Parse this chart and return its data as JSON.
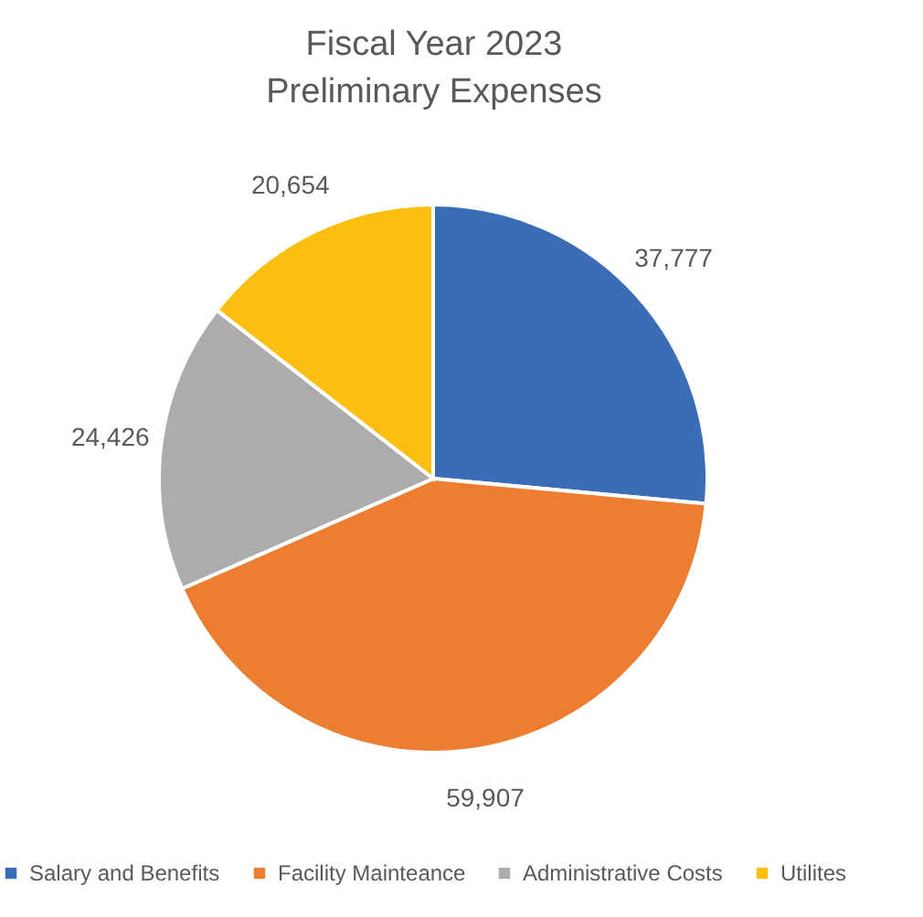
{
  "chart_data": {
    "type": "pie",
    "title": "Fiscal Year 2023\nPreliminary Expenses",
    "categories": [
      "Salary and Benefits",
      "Facility Mainteance",
      "Administrative Costs",
      "Utilites"
    ],
    "values": [
      37777,
      59907,
      24426,
      20654
    ],
    "colors": [
      "#3a6db5",
      "#ed7d31",
      "#acacac",
      "#fbbf12"
    ],
    "value_labels": [
      "37,777",
      "59,907",
      "24,426",
      "20,654"
    ],
    "legend": "bottom"
  }
}
